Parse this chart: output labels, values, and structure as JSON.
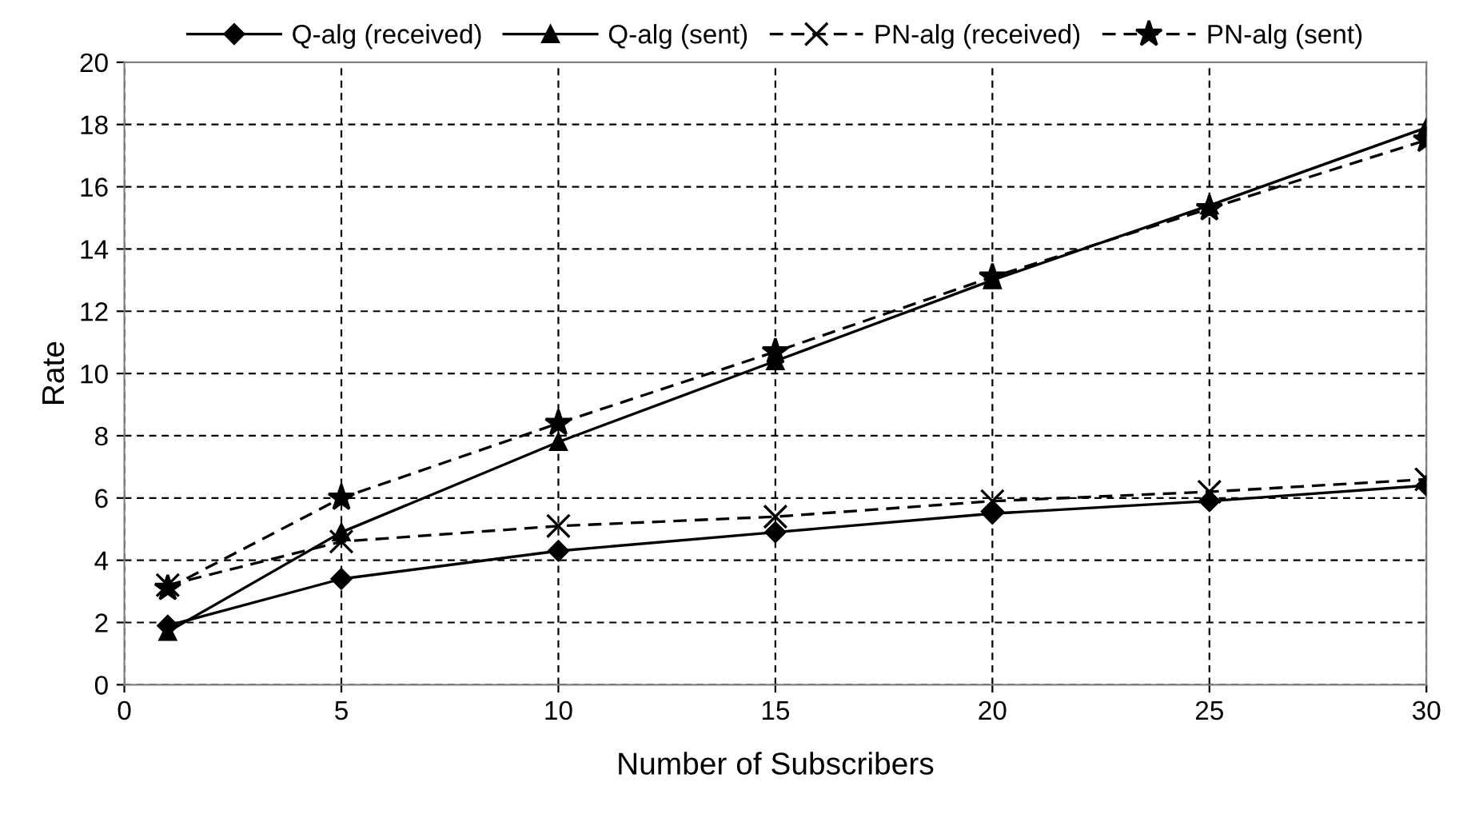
{
  "chart_data": {
    "type": "line",
    "xlabel": "Number of Subscribers",
    "ylabel": "Rate",
    "xlim": [
      0,
      30
    ],
    "xticks": [
      0,
      5,
      10,
      15,
      20,
      25,
      30
    ],
    "ylim": [
      0,
      20
    ],
    "yticks": [
      0,
      2,
      4,
      6,
      8,
      10,
      12,
      14,
      16,
      18,
      20
    ],
    "grid": true,
    "legend": "top",
    "series": [
      {
        "name": "Q-alg (received)",
        "color": "#000000",
        "marker": "diamond",
        "line_style": "solid",
        "x": [
          1,
          5,
          10,
          15,
          20,
          25,
          30
        ],
        "values": [
          1.9,
          3.4,
          4.3,
          4.9,
          5.5,
          5.9,
          6.4
        ]
      },
      {
        "name": "Q-alg (sent)",
        "color": "#000000",
        "marker": "triangle",
        "line_style": "solid",
        "x": [
          1,
          5,
          10,
          15,
          20,
          25,
          30
        ],
        "values": [
          1.7,
          4.9,
          7.8,
          10.4,
          13.0,
          15.4,
          17.9
        ]
      },
      {
        "name": "PN-alg (received)",
        "color": "#000000",
        "marker": "cross",
        "line_style": "dashed",
        "x": [
          1,
          5,
          10,
          15,
          20,
          25,
          30
        ],
        "values": [
          3.2,
          4.6,
          5.1,
          5.4,
          5.9,
          6.2,
          6.6
        ]
      },
      {
        "name": "PN-alg (sent)",
        "color": "#000000",
        "marker": "star",
        "line_style": "dashed",
        "x": [
          1,
          5,
          10,
          15,
          20,
          25,
          30
        ],
        "values": [
          3.1,
          6.0,
          8.4,
          10.7,
          13.1,
          15.3,
          17.5
        ]
      }
    ]
  }
}
